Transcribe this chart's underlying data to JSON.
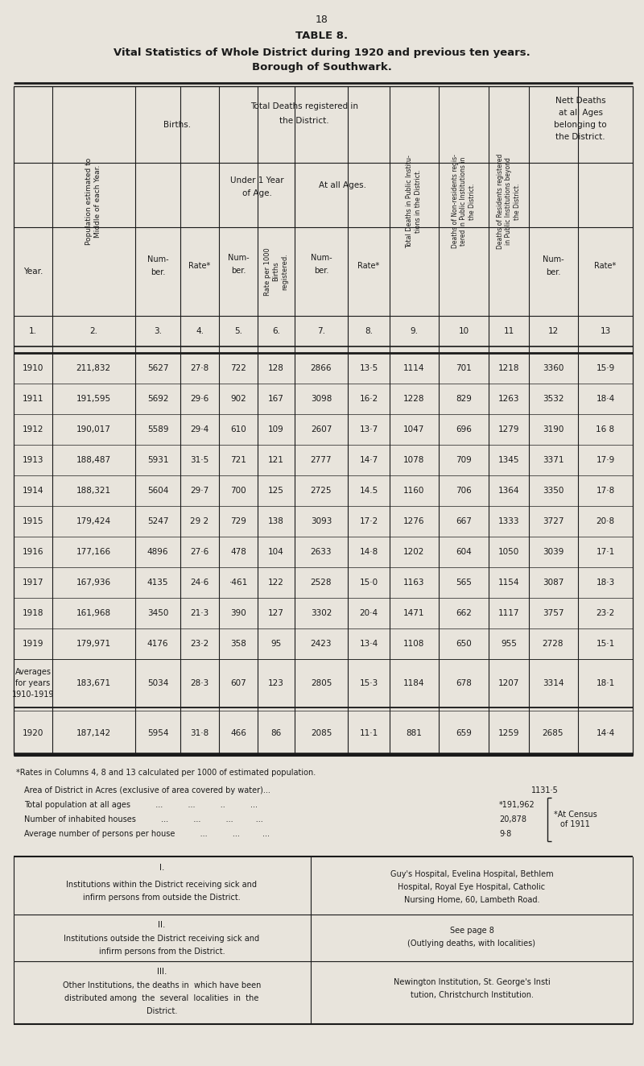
{
  "page_number": "18",
  "title_line1": "TABLE 8.",
  "title_line2": "Vital Statistics of Whole District during 1920 and previous ten years.",
  "title_line3": "Borough of Southwark.",
  "bg_color": "#e8e4dc",
  "text_color": "#1a1a1a",
  "col_numbers": [
    "1.",
    "2.",
    "3.",
    "4.",
    "5.",
    "6.",
    "7.",
    "8.",
    "9.",
    "10",
    "11",
    "12",
    "13"
  ],
  "data_rows": [
    [
      "1910",
      "211,832",
      "5627",
      "27·8",
      "722",
      "128",
      "2866",
      "13·5",
      "1114",
      "701",
      "1218",
      "3360",
      "15·9"
    ],
    [
      "1911",
      "191,595",
      "5692",
      "29·6",
      "902",
      "167",
      "3098",
      "16·2",
      "1228",
      "829",
      "1263",
      "3532",
      "18·4"
    ],
    [
      "1912",
      "190,017",
      "5589",
      "29·4",
      "610",
      "109",
      "2607",
      "13·7",
      "1047",
      "696",
      "1279",
      "3190",
      "16 8"
    ],
    [
      "1913",
      "188,487",
      "5931",
      "31·5",
      "721",
      "121",
      "2777",
      "14·7",
      "1078",
      "709",
      "1345",
      "3371",
      "17·9"
    ],
    [
      "1914",
      "188,321",
      "5604",
      "29·7",
      "700",
      "125",
      "2725",
      "14.5",
      "1160",
      "706",
      "1364",
      "3350",
      "17·8"
    ],
    [
      "1915",
      "179,424",
      "5247",
      "29 2",
      "729",
      "138",
      "3093",
      "17·2",
      "1276",
      "667",
      "1333",
      "3727",
      "20·8"
    ],
    [
      "1916",
      "177,166",
      "4896",
      "27·6",
      "478",
      "104",
      "2633",
      "14·8",
      "1202",
      "604",
      "1050",
      "3039",
      "17·1"
    ],
    [
      "1917",
      "167,936",
      "4135",
      "24·6",
      "·461",
      "122",
      "2528",
      "15·0",
      "1163",
      "565",
      "1154",
      "3087",
      "18·3"
    ],
    [
      "1918",
      "161,968",
      "3450",
      "21·3",
      "390",
      "127",
      "3302",
      "20·4",
      "1471",
      "662",
      "1117",
      "3757",
      "23·2"
    ],
    [
      "1919",
      "179,971",
      "4176",
      "23·2",
      "358",
      "95",
      "2423",
      "13·4",
      "1108",
      "650",
      "955",
      "2728",
      "15·1"
    ]
  ],
  "avg_row": [
    "Averages\nfor years\n1910-1919",
    "183,671",
    "5034",
    "28·3",
    "607",
    "123",
    "2805",
    "15·3",
    "1184",
    "678",
    "1207",
    "3314",
    "18·1"
  ],
  "year1920_row": [
    "1920",
    "187,142",
    "5954",
    "31·8",
    "466",
    "86",
    "2085",
    "11·1",
    "881",
    "659",
    "1259",
    "2685",
    "14·4"
  ],
  "footnote": "*Rates in Columns 4, 8 and 13 calculated per 1000 of estimated population.",
  "stat1": "Area of District in Acres (exclusive of area covered by water)...",
  "stat1_val": "1131·5",
  "stat2": "Total population at all ages          ...          ...          ..          ...",
  "stat2_val": "*191,962",
  "stat3": "Number of inhabited houses          ...          ...          ...         ...",
  "stat3_val": "20,878",
  "stat4": "Average number of persons per house          ...          ...         ...",
  "stat4_val": "9·8",
  "census_note": "*At Census\nof 1911",
  "section_I_left_title": "I.",
  "section_I_left_body": "Institutions within the District receiving sick and\ninfirm persons from outside the District.",
  "section_I_right": "Guy's Hospital, Evelina Hospital, Bethlem\nHospital, Royal Eye Hospital, Catholic\nNursing Home, 60, Lambeth Road.",
  "section_II_left_title": "II.",
  "section_II_left_body": "Institutions outside the District receiving sick and\ninfirm persons from the District.",
  "section_II_right": "See page 8\n(Outlying deaths, with localities)",
  "section_III_left_title": "III.",
  "section_III_left_body": "Other Institutions, the deaths in  which have been\ndistributed among  the  several  localities  in  the\nDistrict.",
  "section_III_right": "Newington Institution, St. George's Insti\ntution, Christchurch Institution."
}
